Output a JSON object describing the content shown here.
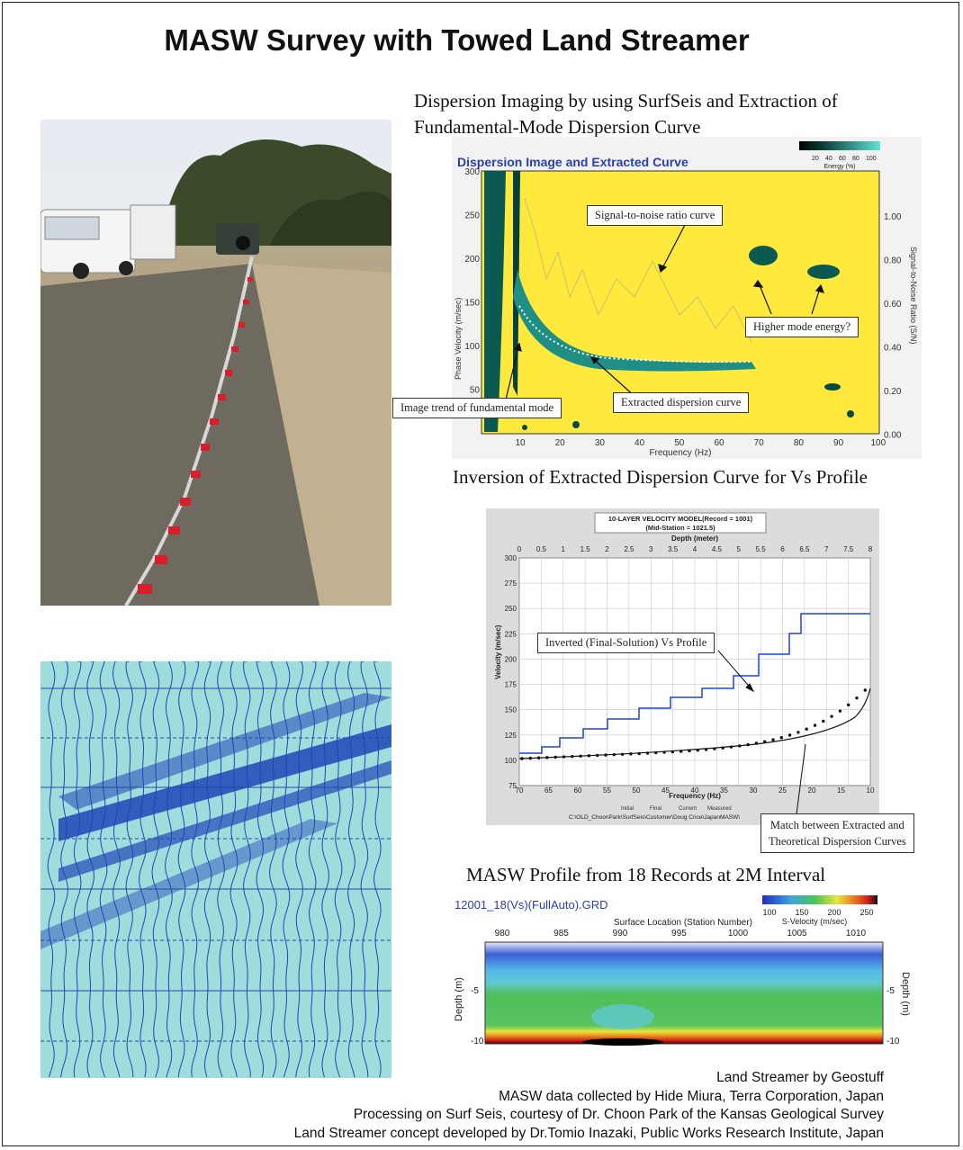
{
  "title": "MASW Survey with Towed Land Streamer",
  "sections": {
    "dispersion_heading_1": "Dispersion Imaging by using SurfSeis and Extraction of",
    "dispersion_heading_2": "Fundamental-Mode Dispersion Curve",
    "inversion_heading": "Inversion of Extracted Dispersion Curve for Vs Profile",
    "profile_heading": "MASW Profile from 18 Records at 2M Interval"
  },
  "dispersion_chart": {
    "title": "Dispersion Image and Extracted Curve",
    "colorbar_ticks": [
      "20",
      "40",
      "60",
      "80",
      "100"
    ],
    "colorbar_label": "Energy (%)",
    "ylabel": "Phase Velocity (m/sec)",
    "y2label": "Signal-to-Noise Ratio (S/N)",
    "xlabel": "Frequency (Hz)",
    "yticks": [
      "300",
      "250",
      "200",
      "150",
      "100",
      "50"
    ],
    "y2ticks": [
      "1.00",
      "0.80",
      "0.60",
      "0.40",
      "0.20",
      "0.00"
    ],
    "xticks": [
      "10",
      "20",
      "30",
      "40",
      "50",
      "60",
      "70",
      "80",
      "90",
      "100"
    ],
    "callouts": {
      "snr": "Signal-to-noise ratio curve",
      "higher": "Higher mode energy?",
      "trend": "Image trend of fundamental mode",
      "extracted": "Extracted dispersion curve"
    }
  },
  "velocity_model": {
    "title_line1": "10-LAYER VELOCITY MODEL(Record = 1001)",
    "title_line2": "(Mid-Station = 1021.5)",
    "top_axis_label": "Depth (meter)",
    "top_ticks": [
      "0",
      "0.5",
      "1",
      "1.5",
      "2",
      "2.5",
      "3",
      "3.5",
      "4",
      "4.5",
      "5",
      "5.5",
      "6",
      "6.5",
      "7",
      "7.5",
      "8"
    ],
    "ylabel": "Velocity (m/sec)",
    "yticks": [
      "300",
      "275",
      "250",
      "225",
      "200",
      "175",
      "150",
      "125",
      "100",
      "75"
    ],
    "xlabel": "Frequency (Hz)",
    "xticks": [
      "70",
      "65",
      "60",
      "55",
      "50",
      "45",
      "40",
      "35",
      "30",
      "25",
      "20",
      "15",
      "10"
    ],
    "legend": [
      "Initial",
      "Final",
      "Current",
      "Measured"
    ],
    "path_text": "C:\\OLD_ChoonPark\\SurfSeis\\Customer\\Doug Crice\\JapanMASW\\",
    "callout_inverted": "Inverted (Final-Solution) Vs Profile",
    "callout_match_1": "Match between Extracted and",
    "callout_match_2": "Theoretical Dispersion Curves"
  },
  "profile_chart": {
    "file_label": "12001_18(Vs)(FullAuto).GRD",
    "colorbar_ticks": [
      "100",
      "150",
      "200",
      "250"
    ],
    "colorbar_label": "S-Velocity (m/sec)",
    "xlabel": "Surface Location (Station Number)",
    "xticks": [
      "980",
      "985",
      "990",
      "995",
      "1000",
      "1005",
      "1010"
    ],
    "ylabel_left": "Depth (m)",
    "ylabel_right": "Depth (m)",
    "yticks": [
      "-5",
      "-10"
    ]
  },
  "credits": [
    "Land Streamer by Geostuff",
    "MASW data collected by Hide Miura, Terra Corporation, Japan",
    "Processing on Surf Seis, courtesy of Dr. Choon Park of the Kansas Geological Survey",
    "Land Streamer concept developed by Dr.Tomio Inazaki, Public Works Research Institute, Japan"
  ]
}
